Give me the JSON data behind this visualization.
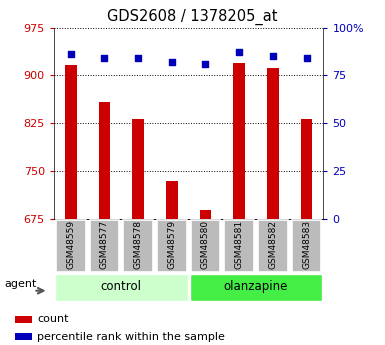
{
  "title": "GDS2608 / 1378205_at",
  "samples": [
    "GSM48559",
    "GSM48577",
    "GSM48578",
    "GSM48579",
    "GSM48580",
    "GSM48581",
    "GSM48582",
    "GSM48583"
  ],
  "count_values": [
    916,
    858,
    832,
    735,
    690,
    920,
    912,
    832
  ],
  "percentile_values": [
    86,
    84,
    84,
    82,
    81,
    87,
    85,
    84
  ],
  "ymin": 675,
  "ymax": 975,
  "yticks_left": [
    675,
    750,
    825,
    900,
    975
  ],
  "yticks_right": [
    0,
    25,
    50,
    75,
    100
  ],
  "bar_color": "#cc0000",
  "marker_color": "#0000bb",
  "control_bg": "#ccffcc",
  "olanzapine_bg": "#44ee44",
  "tick_bg": "#bbbbbb",
  "left_axis_color": "#cc0000",
  "right_axis_color": "#0000bb",
  "legend_count": "count",
  "legend_pct": "percentile rank within the sample"
}
